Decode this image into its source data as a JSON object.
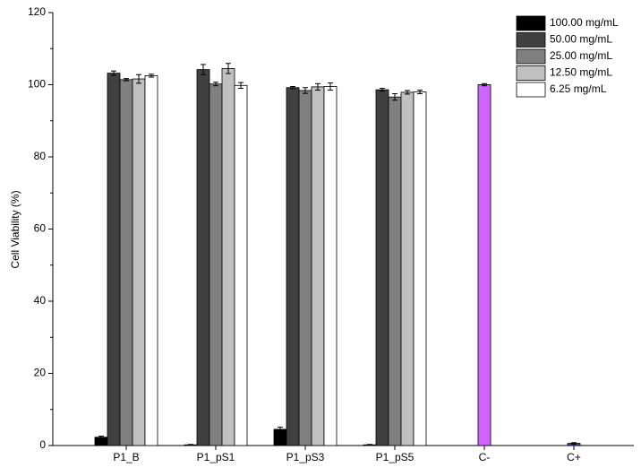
{
  "chart_data": {
    "type": "bar",
    "y_label": "Cell Viability (%)",
    "categories": [
      "P1_B",
      "P1_pS1",
      "P1_pS3",
      "P1_pS5",
      "C-",
      "C+"
    ],
    "series": [
      {
        "name": "100.00 mg/mL",
        "color": "#000000",
        "values": [
          2.3,
          0.2,
          4.5,
          0.2,
          null,
          null
        ],
        "errors": [
          0.3,
          0.1,
          0.6,
          0.1,
          null,
          null
        ]
      },
      {
        "name": "50.00 mg/mL",
        "color": "#404040",
        "values": [
          103.2,
          104.2,
          99.2,
          98.6,
          null,
          null
        ],
        "errors": [
          0.6,
          1.4,
          0.3,
          0.4,
          null,
          null
        ]
      },
      {
        "name": "25.00 mg/mL",
        "color": "#808080",
        "values": [
          101.4,
          100.2,
          98.4,
          96.6,
          100,
          0.6
        ],
        "errors": [
          0.3,
          0.5,
          0.8,
          0.9,
          0.3,
          0.2
        ],
        "point_colors": [
          null,
          null,
          null,
          null,
          "#cc66ff",
          "#3355aa"
        ]
      },
      {
        "name": "12.50 mg/mL",
        "color": "#c0c0c0",
        "values": [
          101.6,
          104.5,
          99.4,
          97.9,
          null,
          null
        ],
        "errors": [
          1.2,
          1.4,
          0.9,
          0.5,
          null,
          null
        ]
      },
      {
        "name": "6.25 mg/mL",
        "color": "#ffffff",
        "values": [
          102.5,
          99.8,
          99.5,
          98.0,
          null,
          null
        ],
        "errors": [
          0.4,
          0.8,
          1.0,
          0.5,
          null,
          null
        ]
      }
    ],
    "ylim": [
      0,
      120
    ],
    "yticks": [
      0,
      20,
      40,
      60,
      80,
      100,
      120
    ],
    "legend": "upper right",
    "grid": false
  }
}
